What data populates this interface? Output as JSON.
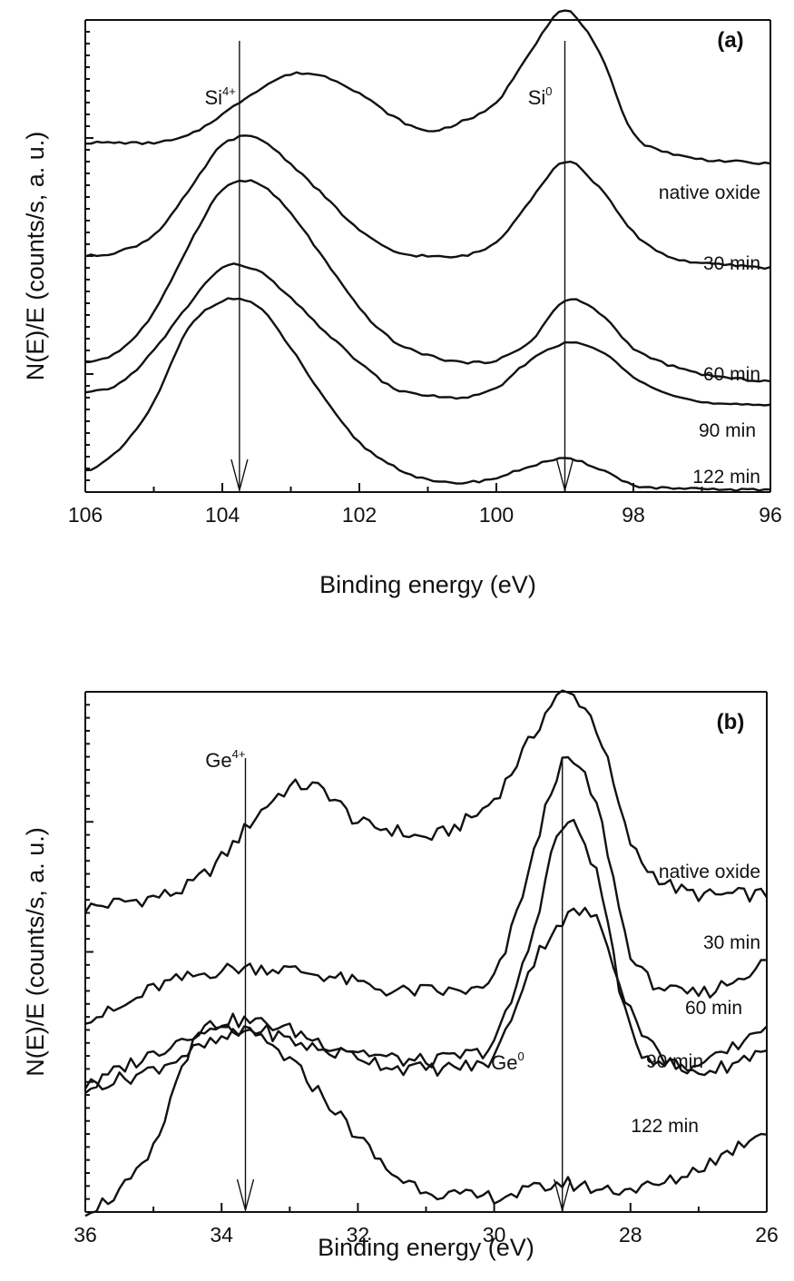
{
  "chart_data": [
    {
      "type": "line",
      "panel_label": "(a)",
      "xlabel": "Binding energy  (eV)",
      "ylabel": "N(E)/E  (counts/s, a. u.)",
      "xlim": [
        106,
        96
      ],
      "x_reversed": true,
      "ylim": [
        0,
        10
      ],
      "y_tick_labels": false,
      "x_ticks": [
        106,
        104,
        102,
        100,
        98,
        96
      ],
      "grid": false,
      "x": [
        106,
        105.5,
        105,
        104.5,
        104,
        103.5,
        103,
        102.5,
        102,
        101.5,
        101,
        100.5,
        100,
        99.5,
        99,
        98.5,
        98,
        97.5,
        97,
        96.5,
        96
      ],
      "series": [
        {
          "name": "native oxide",
          "values": [
            7.4,
            7.4,
            7.4,
            7.55,
            8.0,
            8.5,
            8.85,
            8.8,
            8.45,
            7.95,
            7.65,
            7.85,
            8.25,
            9.35,
            10.2,
            9.3,
            7.6,
            7.2,
            7.05,
            7.0,
            6.95
          ]
        },
        {
          "name": "30 min",
          "values": [
            5.0,
            5.1,
            5.45,
            6.35,
            7.35,
            7.5,
            6.95,
            6.25,
            5.55,
            5.1,
            5.0,
            5.0,
            5.3,
            6.2,
            7.0,
            6.45,
            5.5,
            5.0,
            4.85,
            4.8,
            4.75
          ]
        },
        {
          "name": "60 min",
          "values": [
            2.75,
            3.0,
            3.8,
            5.2,
            6.4,
            6.55,
            5.9,
            4.9,
            3.9,
            3.2,
            2.9,
            2.75,
            2.8,
            3.2,
            4.05,
            3.8,
            3.05,
            2.7,
            2.5,
            2.4,
            2.35
          ]
        },
        {
          "name": "90 min",
          "values": [
            2.1,
            2.3,
            3.0,
            3.95,
            4.75,
            4.7,
            4.1,
            3.4,
            2.75,
            2.2,
            2.05,
            2.0,
            2.2,
            2.8,
            3.15,
            3.0,
            2.45,
            2.1,
            1.9,
            1.85,
            1.85
          ]
        },
        {
          "name": "122 min",
          "values": [
            0.45,
            0.9,
            1.9,
            3.45,
            4.05,
            3.95,
            3.05,
            1.95,
            1.05,
            0.55,
            0.25,
            0.2,
            0.3,
            0.55,
            0.7,
            0.5,
            0.15,
            0.08,
            0.06,
            0.05,
            0.05
          ]
        }
      ],
      "annotations": [
        {
          "base": "Si",
          "sup": "4+",
          "x": 103.75,
          "arrow": "down"
        },
        {
          "base": "Si",
          "sup": "0",
          "x": 99.0,
          "arrow": "down"
        }
      ]
    },
    {
      "type": "line",
      "panel_label": "(b)",
      "xlabel": "Binding energy  (eV)",
      "ylabel": "N(E)/E  (counts/s, a. u.)",
      "xlim": [
        36,
        26
      ],
      "x_reversed": true,
      "ylim": [
        0,
        10
      ],
      "y_tick_labels": false,
      "x_ticks": [
        36,
        34,
        32,
        30,
        28,
        26
      ],
      "grid": false,
      "x": [
        36,
        35.5,
        35,
        34.5,
        34,
        33.5,
        33,
        32.5,
        32,
        31.5,
        31,
        30.5,
        30,
        29.5,
        29,
        28.5,
        28,
        27.5,
        27,
        26.5,
        26
      ],
      "series": [
        {
          "name": "native oxide",
          "values": [
            5.85,
            5.95,
            6.05,
            6.25,
            6.8,
            7.6,
            8.15,
            8.1,
            7.5,
            7.35,
            7.2,
            7.45,
            7.95,
            9.0,
            9.95,
            9.3,
            7.1,
            6.35,
            6.1,
            6.1,
            6.1
          ]
        },
        {
          "name": "30 min",
          "values": [
            3.75,
            3.9,
            4.3,
            4.5,
            4.65,
            4.7,
            4.65,
            4.55,
            4.4,
            4.25,
            4.25,
            4.25,
            4.5,
            6.5,
            8.6,
            7.8,
            5.0,
            4.3,
            4.2,
            4.45,
            4.8
          ]
        },
        {
          "name": "60 min",
          "values": [
            2.35,
            2.75,
            3.05,
            3.4,
            3.65,
            3.65,
            3.5,
            3.25,
            3.1,
            2.95,
            2.9,
            3.0,
            3.3,
            5.05,
            7.4,
            6.5,
            3.45,
            2.9,
            2.7,
            2.85,
            3.15
          ]
        },
        {
          "name": "90 min",
          "values": [
            2.45,
            2.55,
            2.75,
            3.05,
            3.3,
            3.5,
            3.3,
            3.1,
            3.0,
            2.8,
            2.75,
            2.8,
            3.0,
            4.6,
            5.6,
            5.6,
            3.9,
            2.95,
            2.8,
            3.15,
            3.6
          ]
        },
        {
          "name": "122 min",
          "values": [
            0.05,
            0.4,
            1.2,
            3.05,
            3.5,
            3.35,
            2.9,
            2.2,
            1.45,
            0.75,
            0.45,
            0.3,
            0.3,
            0.4,
            0.55,
            0.45,
            0.45,
            0.55,
            0.85,
            1.2,
            1.6
          ]
        }
      ],
      "annotations": [
        {
          "base": "Ge",
          "sup": "4+",
          "x": 33.65,
          "arrow": "down"
        },
        {
          "base": "Ge",
          "sup": "0",
          "x": 29.0,
          "arrow": "down"
        }
      ]
    }
  ]
}
